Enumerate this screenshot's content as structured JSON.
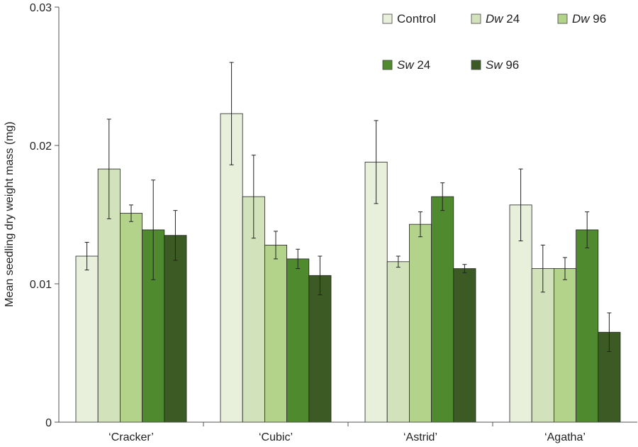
{
  "chart_data": {
    "type": "bar",
    "title": "",
    "xlabel": "",
    "ylabel": "Mean seedling dry weight mass (mg)",
    "ylim": [
      0,
      0.03
    ],
    "yticks": [
      "0",
      "0.01",
      "0.02",
      "0.03"
    ],
    "grid": false,
    "legend_position": "top-right",
    "categories": [
      "‘Cracker’",
      "‘Cubic’",
      "‘Astrid’",
      "‘Agatha’"
    ],
    "series": [
      {
        "name": "Control",
        "color": "#e8f0dc",
        "values": [
          0.012,
          0.0223,
          0.0188,
          0.0157
        ],
        "errors": [
          0.001,
          0.0037,
          0.003,
          0.0026
        ]
      },
      {
        "name": "Dw 24",
        "color": "#d2e3bc",
        "values": [
          0.0183,
          0.0163,
          0.0116,
          0.0111
        ],
        "errors": [
          0.0036,
          0.003,
          0.0004,
          0.0017
        ]
      },
      {
        "name": "Dw 96",
        "color": "#b3d38b",
        "values": [
          0.0151,
          0.0128,
          0.0143,
          0.0111
        ],
        "errors": [
          0.0006,
          0.001,
          0.0009,
          0.0008
        ]
      },
      {
        "name": "Sw 24",
        "color": "#4f8a2e",
        "values": [
          0.0139,
          0.0118,
          0.0163,
          0.0139
        ],
        "errors": [
          0.0036,
          0.0007,
          0.001,
          0.0013
        ]
      },
      {
        "name": "Sw 96",
        "color": "#3b5a24",
        "values": [
          0.0135,
          0.0106,
          0.0111,
          0.0065
        ],
        "errors": [
          0.0018,
          0.0014,
          0.0003,
          0.0014
        ]
      }
    ]
  }
}
